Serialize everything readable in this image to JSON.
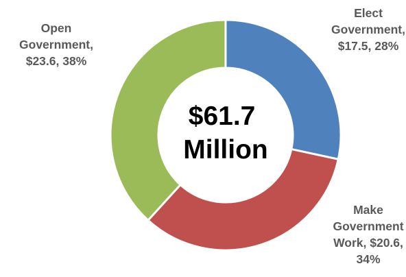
{
  "chart_data": {
    "type": "pie",
    "variant": "donut",
    "center_label": [
      "$61.7",
      "Million"
    ],
    "slices": [
      {
        "category": "Elect Government",
        "value": 17.5,
        "percent": 28,
        "color": "#4F81BD",
        "label_lines": [
          "Elect",
          "Government,",
          "$17.5, 28%"
        ]
      },
      {
        "category": "Make Government Work",
        "value": 20.6,
        "percent": 34,
        "color": "#C0504D",
        "label_lines": [
          "Make",
          "Government",
          "Work, $20.6,",
          "34%"
        ]
      },
      {
        "category": "Open Government",
        "value": 23.6,
        "percent": 38,
        "color": "#9BBB59",
        "label_lines": [
          "Open",
          "Government,",
          "$23.6, 38%"
        ]
      }
    ]
  }
}
